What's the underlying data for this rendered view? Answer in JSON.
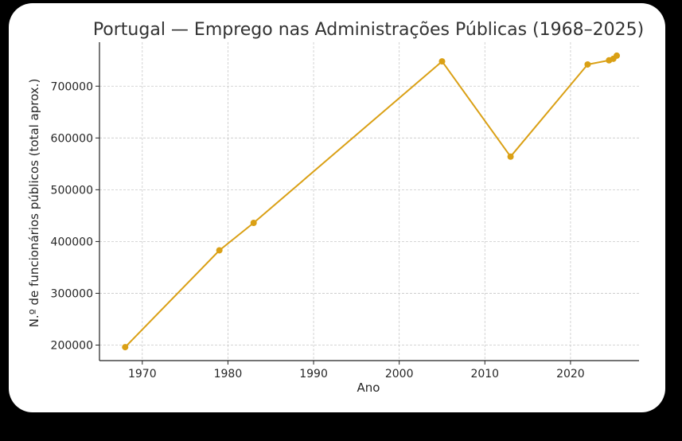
{
  "chart_data": {
    "type": "line",
    "title": "Portugal — Emprego nas Administrações Públicas (1968–2025)",
    "xlabel": "Ano",
    "ylabel": "N.º de funcionários públicos (total aprox.)",
    "xlim": [
      1965,
      2028
    ],
    "ylim": [
      170000,
      785000
    ],
    "xticks": [
      1970,
      1980,
      1990,
      2000,
      2010,
      2020
    ],
    "xtick_labels": [
      "1970",
      "1980",
      "1990",
      "2000",
      "2010",
      "2020"
    ],
    "yticks": [
      200000,
      300000,
      400000,
      500000,
      600000,
      700000
    ],
    "ytick_labels": [
      "200000",
      "300000",
      "400000",
      "500000",
      "600000",
      "700000"
    ],
    "grid": true,
    "series": [
      {
        "color": "#DAA015",
        "x": [
          1968,
          1979,
          1983,
          2005,
          2013,
          2022,
          2024.5,
          2025,
          2025.4
        ],
        "y": [
          196000,
          383000,
          436000,
          748000,
          564000,
          742000,
          750000,
          753000,
          759000
        ]
      }
    ]
  }
}
